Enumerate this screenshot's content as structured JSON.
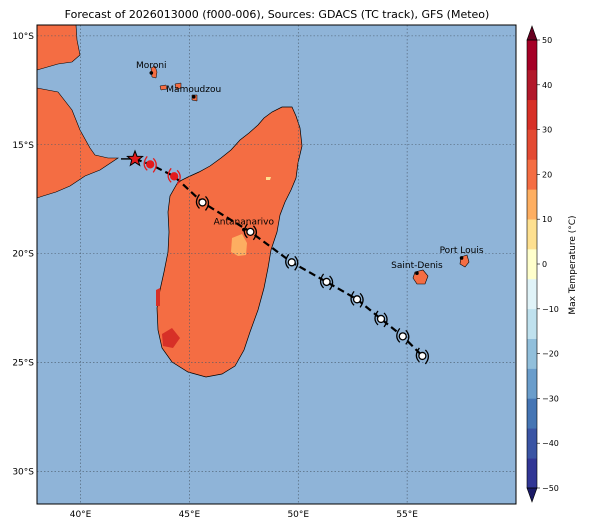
{
  "title": "Forecast of 2026013000 (f000-006), Sources: GDACS (TC track), GFS (Meteo)",
  "map": {
    "lon_range": [
      38,
      60
    ],
    "lat_range": [
      -31.5,
      -9.5
    ],
    "lon_ticks": [
      {
        "value": 40,
        "label": "40°E"
      },
      {
        "value": 45,
        "label": "45°E"
      },
      {
        "value": 50,
        "label": "50°E"
      },
      {
        "value": 55,
        "label": "55°E"
      }
    ],
    "lat_ticks": [
      {
        "value": -10,
        "label": "10°S"
      },
      {
        "value": -15,
        "label": "15°S"
      },
      {
        "value": -20,
        "label": "20°S"
      },
      {
        "value": -25,
        "label": "25°S"
      },
      {
        "value": -30,
        "label": "30°S"
      }
    ],
    "gridlines": true,
    "colors": {
      "ocean": "#8fb4d8",
      "land": "#f46d43",
      "track": "#000000",
      "current_position": "#e31a1c"
    }
  },
  "cities": [
    {
      "name": "Moroni",
      "lon": 43.25,
      "lat": -11.7
    },
    {
      "name": "Mamoudzou",
      "lon": 45.2,
      "lat": -12.8
    },
    {
      "name": "Antananarivo",
      "lon": 47.5,
      "lat": -18.9
    },
    {
      "name": "Saint-Denis",
      "lon": 55.45,
      "lat": -20.9
    },
    {
      "name": "Port Louis",
      "lon": 57.5,
      "lat": -20.2
    }
  ],
  "track": [
    {
      "lon": 42.5,
      "lat": -15.65,
      "kind": "origin-star"
    },
    {
      "lon": 43.2,
      "lat": -15.9,
      "kind": "current"
    },
    {
      "lon": 44.3,
      "lat": -16.45,
      "kind": "current"
    },
    {
      "lon": 45.6,
      "lat": -17.65,
      "kind": "forecast"
    },
    {
      "lon": 47.8,
      "lat": -19.0,
      "kind": "forecast"
    },
    {
      "lon": 49.7,
      "lat": -20.4,
      "kind": "forecast"
    },
    {
      "lon": 51.3,
      "lat": -21.3,
      "kind": "forecast"
    },
    {
      "lon": 52.7,
      "lat": -22.1,
      "kind": "forecast"
    },
    {
      "lon": 53.8,
      "lat": -23.0,
      "kind": "forecast"
    },
    {
      "lon": 54.8,
      "lat": -23.8,
      "kind": "forecast"
    },
    {
      "lon": 55.7,
      "lat": -24.7,
      "kind": "forecast"
    }
  ],
  "colorbar": {
    "label": "Max Temperature (°C)",
    "min": -50,
    "max": 50,
    "ticks": [
      {
        "value": 50,
        "label": "50"
      },
      {
        "value": 40,
        "label": "40"
      },
      {
        "value": 30,
        "label": "30"
      },
      {
        "value": 20,
        "label": "20"
      },
      {
        "value": 10,
        "label": "10"
      },
      {
        "value": 0,
        "label": "0"
      },
      {
        "value": -10,
        "label": "−10"
      },
      {
        "value": -20,
        "label": "−20"
      },
      {
        "value": -30,
        "label": "−30"
      },
      {
        "value": -40,
        "label": "−40"
      },
      {
        "value": -50,
        "label": "−50"
      }
    ],
    "colors": [
      "#313695",
      "#3a54a4",
      "#4575b4",
      "#6a9dcb",
      "#91bfdb",
      "#bfe1ee",
      "#e0f3f8",
      "#ffffcc",
      "#fee090",
      "#fdae61",
      "#f46d43",
      "#e34a33",
      "#d73027",
      "#b2182b",
      "#a50026"
    ]
  }
}
